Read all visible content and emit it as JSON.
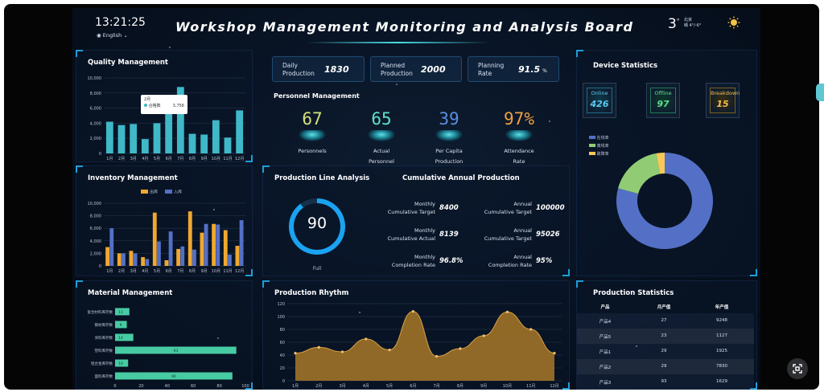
{
  "header": {
    "time": "13:21:25",
    "language": "English",
    "title": "Workshop Management Monitoring and Analysis Board",
    "weather_temp": "3",
    "weather_unit": "°",
    "weather_city": "北京",
    "weather_desc": "晴 4°/-6°",
    "icons": {
      "language": "globe-icon",
      "dropdown": "chevron-down-icon",
      "weather": "sun-icon"
    }
  },
  "kpis": [
    {
      "label_1": "Daily",
      "label_2": "Production",
      "value": "1830",
      "unit": ""
    },
    {
      "label_1": "Planned",
      "label_2": "Production",
      "value": "2000",
      "unit": ""
    },
    {
      "label_1": "Planning",
      "label_2": "Rate",
      "value": "91.5",
      "unit": "%"
    }
  ],
  "personnel": {
    "title": "Personnel Management",
    "items": [
      {
        "value": "67",
        "label_1": "Personnels",
        "label_2": "",
        "color": "#d6e07a"
      },
      {
        "value": "65",
        "label_1": "Actual",
        "label_2": "Personnel",
        "color": "#5fe0c8"
      },
      {
        "value": "39",
        "label_1": "Per Capita",
        "label_2": "Production",
        "color": "#5b8de0"
      },
      {
        "value": "97%",
        "label_1": "Attendance",
        "label_2": "Rate",
        "color": "#f0a040"
      }
    ]
  },
  "production_line": {
    "title": "Production Line Analysis",
    "gauge_value": "90",
    "gauge_percent": 90,
    "gauge_label": "Full"
  },
  "cumulative": {
    "title": "Cumulative Annual Production",
    "rows": [
      {
        "l1": "Monthly",
        "l2": "Cumulative Target",
        "v1": "8400",
        "r1": "Annual",
        "r2": "Cumulative Target",
        "v2": "100000"
      },
      {
        "l1": "Monthly",
        "l2": "Cumulative Actual",
        "v1": "8139",
        "r1": "Annual",
        "r2": "Cumulative Target",
        "v2": "95026"
      },
      {
        "l1": "Monthly",
        "l2": "Completion Rate",
        "v1": "96.8%",
        "r1": "Annual",
        "r2": "Completion Rate",
        "v2": "95%"
      }
    ]
  },
  "devices": {
    "title": "Device Statistics",
    "boxes": [
      {
        "label": "Online",
        "value": "426",
        "color": "#5fc8f0"
      },
      {
        "label": "Offline",
        "value": "97",
        "color": "#5fe090"
      },
      {
        "label": "Breakdown",
        "value": "15",
        "color": "#f0c050"
      }
    ],
    "legend": [
      {
        "name": "在线率",
        "color": "#5470c6"
      },
      {
        "name": "离线率",
        "color": "#91cc75"
      },
      {
        "name": "故障率",
        "color": "#fac858"
      }
    ]
  },
  "production_stats": {
    "title": "Production Statistics",
    "headers": [
      "产品",
      "月产值",
      "年产值"
    ],
    "rows": [
      [
        "产品4",
        "27",
        "9248"
      ],
      [
        "产品5",
        "23",
        "1127"
      ],
      [
        "产品1",
        "29",
        "1925"
      ],
      [
        "产品2",
        "29",
        "7830"
      ],
      [
        "产品3",
        "93",
        "1629"
      ]
    ]
  },
  "chart_data": [
    {
      "type": "bar",
      "title": "Quality Management",
      "categories": [
        "1月",
        "2月",
        "3月",
        "4月",
        "5月",
        "6月",
        "7月",
        "8月",
        "9月",
        "10月",
        "11月",
        "12月"
      ],
      "values": [
        4200,
        3756,
        3900,
        1900,
        4000,
        7300,
        8800,
        2600,
        2500,
        4400,
        2100,
        5700
      ],
      "ylim": [
        0,
        10000
      ],
      "yticks": [
        "0",
        "2,000",
        "4,000",
        "6,000",
        "8,000",
        "10,000"
      ],
      "color": "#3fb8c8",
      "tooltip": {
        "title": "2月",
        "series": "合格数",
        "value": "3,756"
      }
    },
    {
      "type": "bar",
      "title": "Inventory Management",
      "categories": [
        "1月",
        "2月",
        "3月",
        "4月",
        "5月",
        "6月",
        "7月",
        "8月",
        "9月",
        "10月",
        "11月",
        "12月"
      ],
      "series": [
        {
          "name": "出库",
          "color": "#f0a830",
          "values": [
            3000,
            2000,
            2400,
            1400,
            8500,
            900,
            2700,
            8700,
            5300,
            6700,
            5700,
            3200
          ]
        },
        {
          "name": "入库",
          "color": "#5470c6",
          "values": [
            6000,
            2000,
            2000,
            1100,
            3900,
            5500,
            3100,
            2600,
            6700,
            6600,
            1800,
            7300
          ]
        }
      ],
      "ylim": [
        0,
        10000
      ],
      "yticks": [
        "0",
        "2,000",
        "4,000",
        "6,000",
        "8,000",
        "10,000"
      ]
    },
    {
      "type": "bar",
      "title": "Material Management",
      "orientation": "horizontal",
      "categories": [
        "复合材料库存数",
        "钢材库存数",
        "涂料库存数",
        "塑料库存数",
        "铝合金库存数",
        "面料库存数"
      ],
      "values": [
        11,
        9,
        14,
        93,
        10,
        90
      ],
      "xlim": [
        0,
        100
      ],
      "xticks": [
        "0",
        "20",
        "40",
        "60",
        "80",
        "100"
      ],
      "color": "#4fe0b0"
    },
    {
      "type": "area",
      "title": "Production Rhythm",
      "categories": [
        "1月",
        "2月",
        "3月",
        "4月",
        "5月",
        "6月",
        "7月",
        "8月",
        "9月",
        "10月",
        "11月",
        "12月"
      ],
      "values": [
        43,
        52,
        45,
        65,
        48,
        108,
        38,
        50,
        70,
        107,
        80,
        43
      ],
      "ylim": [
        0,
        120
      ],
      "yticks": [
        "0",
        "20",
        "40",
        "60",
        "80",
        "100",
        "120"
      ],
      "color": "#a87828"
    },
    {
      "type": "pie",
      "title": "Device Statistics",
      "labels": [
        "在线率",
        "离线率",
        "故障率"
      ],
      "values": [
        426,
        97,
        15
      ],
      "colors": [
        "#5470c6",
        "#91cc75",
        "#fac858"
      ]
    }
  ]
}
